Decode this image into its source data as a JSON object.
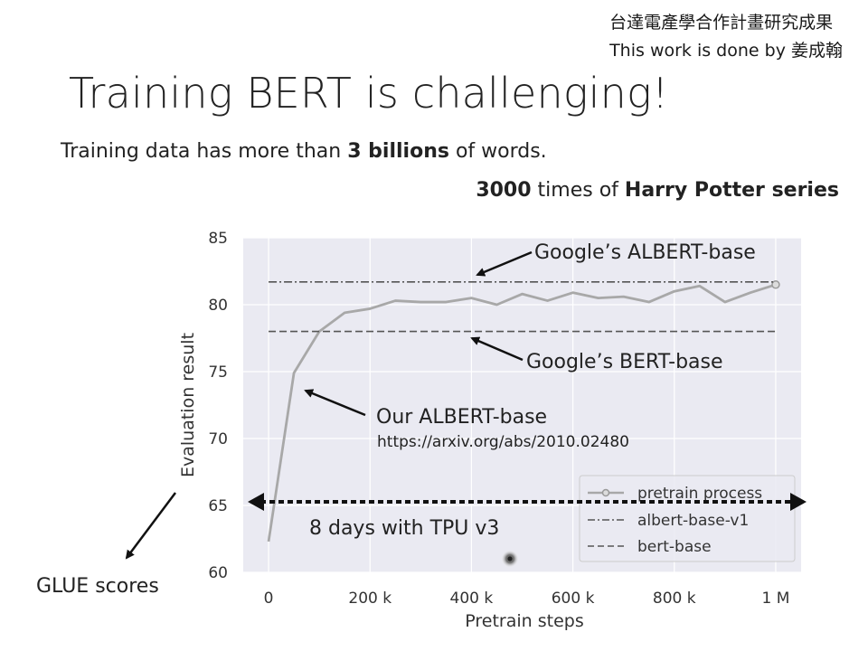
{
  "slide": {
    "credit_line1": "台達電產學合作計畫研究成果",
    "credit_line2_prefix": "This work is done by ",
    "credit_line2_name": "姜成翰",
    "title": "Training BERT is challenging!",
    "subtitle_pre": "Training data has more than ",
    "subtitle_bold": "3 billions",
    "subtitle_post": " of words.",
    "subtitle2_bold1": "3000",
    "subtitle2_mid": " times of ",
    "subtitle2_bold2": "Harry Potter series"
  },
  "chart_data": {
    "type": "line",
    "xlabel": "Pretrain steps",
    "ylabel": "Evaluation result",
    "xlim": [
      -50000,
      1050000
    ],
    "ylim": [
      60,
      85
    ],
    "x_ticks": [
      0,
      200000,
      400000,
      600000,
      800000,
      1000000
    ],
    "x_tick_labels": [
      "0",
      "200 k",
      "400 k",
      "600 k",
      "800 k",
      "1 M"
    ],
    "y_ticks": [
      60,
      65,
      70,
      75,
      80,
      85
    ],
    "y_tick_labels": [
      "60",
      "65",
      "70",
      "75",
      "80",
      "85"
    ],
    "grid": true,
    "legend_position": "lower-right",
    "series": [
      {
        "name": "pretrain process",
        "style": "line-with-end-marker",
        "color": "#a8a8a8",
        "x": [
          0,
          50000,
          100000,
          150000,
          200000,
          250000,
          300000,
          350000,
          400000,
          450000,
          500000,
          550000,
          600000,
          650000,
          700000,
          750000,
          800000,
          850000,
          900000,
          950000,
          1000000
        ],
        "y": [
          62.3,
          74.9,
          78.0,
          79.4,
          79.7,
          80.3,
          80.2,
          80.2,
          80.5,
          80.0,
          80.8,
          80.3,
          80.9,
          80.5,
          80.6,
          80.2,
          81.0,
          81.4,
          80.2,
          80.9,
          81.5
        ]
      },
      {
        "name": "albert-base-v1",
        "style": "dashdot",
        "color": "#555555",
        "x": [
          0,
          1000000
        ],
        "y": [
          81.7,
          81.7
        ]
      },
      {
        "name": "bert-base",
        "style": "dashed",
        "color": "#555555",
        "x": [
          0,
          1000000
        ],
        "y": [
          78.0,
          78.0
        ]
      }
    ],
    "annotations": {
      "google_albert": "Google’s ALBERT-base",
      "google_bert": "Google’s BERT-base",
      "our_albert": "Our ALBERT-base",
      "arxiv_url": "https://arxiv.org/abs/2010.02480",
      "tpu": "8 days with TPU v3",
      "glue": "GLUE scores"
    }
  }
}
